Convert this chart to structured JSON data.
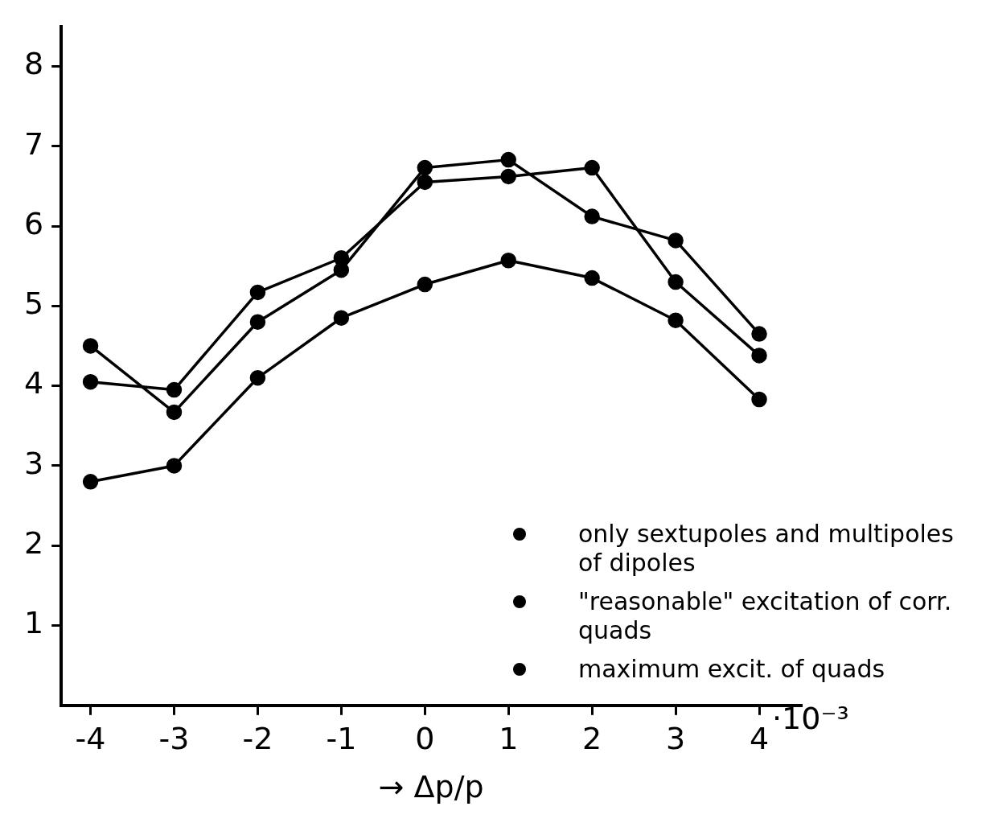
{
  "chart_data": {
    "type": "line",
    "xlabel": "→ Δp/p",
    "x": [
      -4,
      -3,
      -2,
      -1,
      0,
      1,
      2,
      3,
      4
    ],
    "series": [
      {
        "name": "only sextupoles and multipoles of dipoles",
        "color": "#000000",
        "values": [
          4.5,
          3.67,
          4.8,
          5.45,
          6.73,
          6.83,
          6.12,
          5.82,
          4.65
        ]
      },
      {
        "name": "\"reasonable\" excitation of corr. quads",
        "color": "#000000",
        "values": [
          2.8,
          3.0,
          4.1,
          4.85,
          5.27,
          5.57,
          5.35,
          4.82,
          3.83
        ]
      },
      {
        "name": "maximum excit. of quads",
        "color": "#000000",
        "values": [
          4.05,
          3.95,
          5.17,
          5.6,
          6.55,
          6.62,
          6.73,
          5.3,
          4.38
        ]
      }
    ],
    "xlim": [
      -4.35,
      4.5
    ],
    "ylim": [
      0,
      8.5
    ],
    "xticks": [
      -4,
      -3,
      -2,
      -1,
      0,
      1,
      2,
      3,
      4
    ],
    "annotations": [
      "·10⁻³"
    ],
    "yticks": [
      1,
      2,
      3,
      4,
      5,
      6,
      7,
      8
    ],
    "grid": false,
    "legend": "bottom right",
    "marker": "circle",
    "line_style": "solid"
  }
}
